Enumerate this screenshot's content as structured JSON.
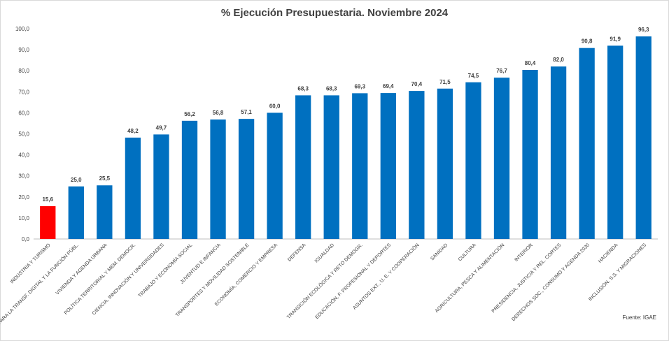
{
  "chart_data": {
    "type": "bar",
    "title": "% Ejecución Presupuestaria. Noviembre 2024",
    "source": "Fuente: IGAE",
    "ylim": [
      0,
      100
    ],
    "yticks": [
      "0,0",
      "10,0",
      "20,0",
      "30,0",
      "40,0",
      "50,0",
      "60,0",
      "70,0",
      "80,0",
      "90,0",
      "100,0"
    ],
    "grid": false,
    "categories": [
      "INDUSTRIA Y TURISMO",
      "PARA LA TRANSF. DIGITAL Y LA FUNCIÓN PÚBL.",
      "VIVIENDA Y AGENDA URBANA",
      "POLÍTICA TERRITORIAL Y MEM. DEMOCR.",
      "CIENCIA, INNOVACIÓN Y UNIVERSIDADES",
      "TRABAJO Y ECONOMÍA SOCIAL",
      "JUVENTUD E INFANCIA",
      "TRANSPORTES Y MOVILIDAD SOSTENIBLE",
      "ECONOMÍA, COMERCIO Y EMPRESA",
      "DEFENSA",
      "IGUALDAD",
      "TRANSICIÓN ECOLÓGICA Y RETO DEMOGR.",
      "EDUCACIÓN, F. PROFESIONAL Y DEPORTES",
      "ASUNTOS EXT., U. E. Y COOPERACIÓN",
      "SANIDAD",
      "CULTURA",
      "AGRICULTURA, PESCA Y ALIMENTACIÓN",
      "INTERIOR",
      "PRESIDENCIA, JUSTICIA Y REL. CORTES",
      "DERECHOS SOC., CONSUMO Y AGENDA 2030",
      "HACIENDA",
      "INCLUSIÓN, S.S. Y MIGRACIONES"
    ],
    "values": [
      15.6,
      25.0,
      25.5,
      48.2,
      49.7,
      56.2,
      56.8,
      57.1,
      60.0,
      68.3,
      68.3,
      69.3,
      69.4,
      70.4,
      71.5,
      74.5,
      76.7,
      80.4,
      82.0,
      90.8,
      91.9,
      96.3
    ],
    "labels": [
      "15,6",
      "25,0",
      "25,5",
      "48,2",
      "49,7",
      "56,2",
      "56,8",
      "57,1",
      "60,0",
      "68,3",
      "68,3",
      "69,3",
      "69,4",
      "70,4",
      "71,5",
      "74,5",
      "76,7",
      "80,4",
      "82,0",
      "90,8",
      "91,9",
      "96,3"
    ],
    "colors": {
      "bar": "#0070c0",
      "highlight": "#ff0000",
      "highlight_category": "INDUSTRIA Y TURISMO",
      "axis": "#bfbfbf",
      "text": "#404040"
    }
  }
}
